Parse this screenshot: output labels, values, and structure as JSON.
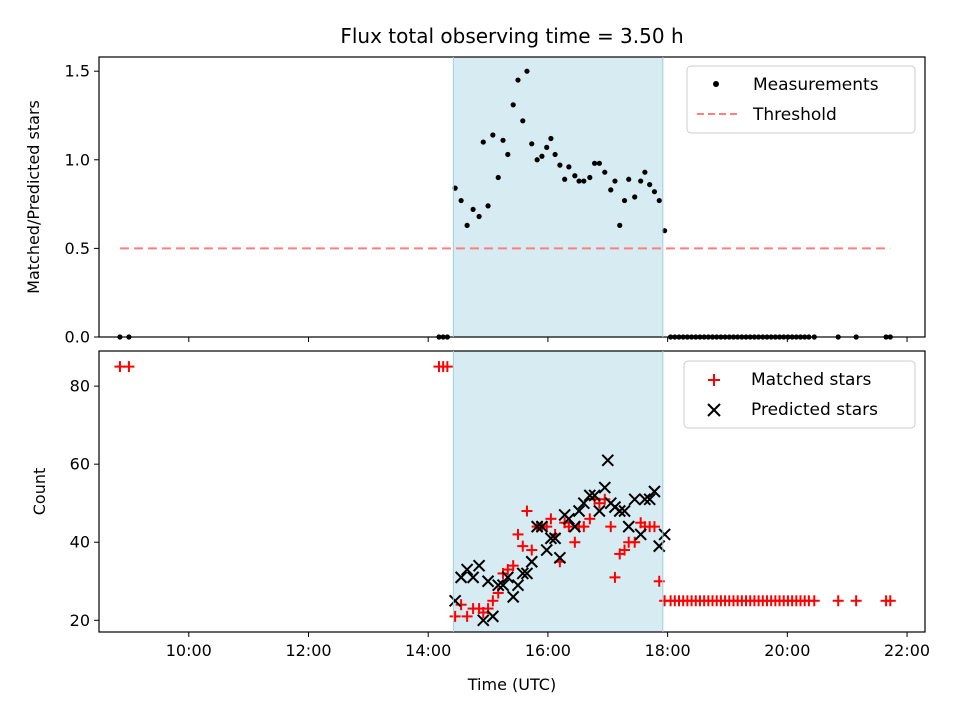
{
  "chart_data": [
    {
      "type": "scatter",
      "title": "Flux total observing time = 3.50 h",
      "xlabel": "",
      "ylabel": "Matched/Predicted stars",
      "xlim": [
        8.5,
        22.3
      ],
      "ylim": [
        0,
        1.58
      ],
      "x_ticks": [
        10,
        12,
        14,
        16,
        18,
        20,
        22
      ],
      "y_ticks": [
        0.0,
        0.5,
        1.0,
        1.5
      ],
      "y_tick_labels": [
        "0.0",
        "0.5",
        "1.0",
        "1.5"
      ],
      "shaded_region": {
        "x_start": 14.42,
        "x_end": 17.92,
        "color": "#add8e6"
      },
      "legend": {
        "placement": "top-right",
        "entries": [
          "Measurements",
          "Threshold"
        ]
      },
      "series": [
        {
          "name": "Measurements",
          "marker": "dot",
          "color": "#000000",
          "points": [
            [
              8.85,
              0
            ],
            [
              9.0,
              0
            ],
            [
              14.18,
              0
            ],
            [
              14.25,
              0
            ],
            [
              14.32,
              0
            ],
            [
              14.45,
              0.84
            ],
            [
              14.55,
              0.77
            ],
            [
              14.65,
              0.63
            ],
            [
              14.75,
              0.72
            ],
            [
              14.85,
              0.68
            ],
            [
              14.92,
              1.1
            ],
            [
              15.0,
              0.74
            ],
            [
              15.08,
              1.14
            ],
            [
              15.17,
              0.9
            ],
            [
              15.25,
              1.11
            ],
            [
              15.33,
              1.03
            ],
            [
              15.42,
              1.31
            ],
            [
              15.5,
              1.45
            ],
            [
              15.58,
              1.22
            ],
            [
              15.65,
              1.5
            ],
            [
              15.73,
              1.09
            ],
            [
              15.82,
              1.0
            ],
            [
              15.9,
              1.02
            ],
            [
              15.98,
              1.07
            ],
            [
              16.05,
              1.12
            ],
            [
              16.12,
              1.03
            ],
            [
              16.2,
              0.97
            ],
            [
              16.28,
              0.89
            ],
            [
              16.35,
              0.96
            ],
            [
              16.45,
              0.91
            ],
            [
              16.52,
              0.88
            ],
            [
              16.6,
              0.88
            ],
            [
              16.7,
              0.9
            ],
            [
              16.78,
              0.98
            ],
            [
              16.86,
              0.98
            ],
            [
              16.95,
              0.93
            ],
            [
              17.05,
              0.83
            ],
            [
              17.12,
              0.88
            ],
            [
              17.2,
              0.63
            ],
            [
              17.28,
              0.77
            ],
            [
              17.35,
              0.89
            ],
            [
              17.45,
              0.79
            ],
            [
              17.55,
              0.88
            ],
            [
              17.62,
              0.93
            ],
            [
              17.7,
              0.86
            ],
            [
              17.78,
              0.82
            ],
            [
              17.86,
              0.77
            ],
            [
              17.95,
              0.6
            ],
            [
              18.05,
              0
            ],
            [
              18.12,
              0
            ],
            [
              18.19,
              0
            ],
            [
              18.26,
              0
            ],
            [
              18.33,
              0
            ],
            [
              18.4,
              0
            ],
            [
              18.47,
              0
            ],
            [
              18.54,
              0
            ],
            [
              18.61,
              0
            ],
            [
              18.68,
              0
            ],
            [
              18.75,
              0
            ],
            [
              18.82,
              0
            ],
            [
              18.89,
              0
            ],
            [
              18.96,
              0
            ],
            [
              19.03,
              0
            ],
            [
              19.1,
              0
            ],
            [
              19.17,
              0
            ],
            [
              19.24,
              0
            ],
            [
              19.31,
              0
            ],
            [
              19.38,
              0
            ],
            [
              19.45,
              0
            ],
            [
              19.52,
              0
            ],
            [
              19.59,
              0
            ],
            [
              19.66,
              0
            ],
            [
              19.73,
              0
            ],
            [
              19.8,
              0
            ],
            [
              19.87,
              0
            ],
            [
              19.94,
              0
            ],
            [
              20.01,
              0
            ],
            [
              20.08,
              0
            ],
            [
              20.15,
              0
            ],
            [
              20.22,
              0
            ],
            [
              20.29,
              0
            ],
            [
              20.36,
              0
            ],
            [
              20.45,
              0
            ],
            [
              20.85,
              0
            ],
            [
              21.15,
              0
            ],
            [
              21.65,
              0
            ],
            [
              21.72,
              0
            ]
          ]
        },
        {
          "name": "Threshold",
          "style": "dashed",
          "color": "#ff7f7f",
          "points": [
            [
              8.85,
              0.5
            ],
            [
              21.72,
              0.5
            ]
          ]
        }
      ]
    },
    {
      "type": "scatter",
      "title": "",
      "xlabel": "Time (UTC)",
      "ylabel": "Count",
      "xlim": [
        8.5,
        22.3
      ],
      "ylim": [
        17,
        89
      ],
      "x_ticks": [
        10,
        12,
        14,
        16,
        18,
        20,
        22
      ],
      "x_tick_labels": [
        "10:00",
        "12:00",
        "14:00",
        "16:00",
        "18:00",
        "20:00",
        "22:00"
      ],
      "y_ticks": [
        20,
        40,
        60,
        80
      ],
      "y_tick_labels": [
        "20",
        "40",
        "60",
        "80"
      ],
      "shaded_region": {
        "x_start": 14.42,
        "x_end": 17.92,
        "color": "#add8e6"
      },
      "legend": {
        "placement": "top-right",
        "entries": [
          "Matched stars",
          "Predicted stars"
        ]
      },
      "series": [
        {
          "name": "Matched stars",
          "marker": "plus",
          "color": "#ff0000",
          "points": [
            [
              8.85,
              85
            ],
            [
              9.0,
              85
            ],
            [
              14.18,
              85
            ],
            [
              14.25,
              85
            ],
            [
              14.32,
              85
            ],
            [
              14.45,
              21
            ],
            [
              14.55,
              24
            ],
            [
              14.65,
              21
            ],
            [
              14.75,
              23
            ],
            [
              14.85,
              23
            ],
            [
              14.92,
              22
            ],
            [
              15.0,
              23
            ],
            [
              15.08,
              25
            ],
            [
              15.17,
              27
            ],
            [
              15.25,
              32
            ],
            [
              15.33,
              33
            ],
            [
              15.42,
              34
            ],
            [
              15.5,
              42
            ],
            [
              15.58,
              39
            ],
            [
              15.65,
              48
            ],
            [
              15.73,
              38
            ],
            [
              15.82,
              44
            ],
            [
              15.9,
              44
            ],
            [
              15.98,
              44
            ],
            [
              16.05,
              46
            ],
            [
              16.12,
              42
            ],
            [
              16.2,
              35
            ],
            [
              16.28,
              45
            ],
            [
              16.35,
              44
            ],
            [
              16.45,
              40
            ],
            [
              16.52,
              44
            ],
            [
              16.6,
              44
            ],
            [
              16.7,
              46
            ],
            [
              16.78,
              51
            ],
            [
              16.86,
              50
            ],
            [
              16.95,
              51
            ],
            [
              17.05,
              44
            ],
            [
              17.12,
              31
            ],
            [
              17.2,
              37
            ],
            [
              17.28,
              38
            ],
            [
              17.35,
              40
            ],
            [
              17.45,
              40
            ],
            [
              17.55,
              45
            ],
            [
              17.62,
              44
            ],
            [
              17.7,
              44
            ],
            [
              17.78,
              44
            ],
            [
              17.86,
              30
            ],
            [
              17.95,
              25
            ],
            [
              18.05,
              25
            ],
            [
              18.12,
              25
            ],
            [
              18.19,
              25
            ],
            [
              18.26,
              25
            ],
            [
              18.33,
              25
            ],
            [
              18.4,
              25
            ],
            [
              18.47,
              25
            ],
            [
              18.54,
              25
            ],
            [
              18.61,
              25
            ],
            [
              18.68,
              25
            ],
            [
              18.75,
              25
            ],
            [
              18.82,
              25
            ],
            [
              18.89,
              25
            ],
            [
              18.96,
              25
            ],
            [
              19.03,
              25
            ],
            [
              19.1,
              25
            ],
            [
              19.17,
              25
            ],
            [
              19.24,
              25
            ],
            [
              19.31,
              25
            ],
            [
              19.38,
              25
            ],
            [
              19.45,
              25
            ],
            [
              19.52,
              25
            ],
            [
              19.59,
              25
            ],
            [
              19.66,
              25
            ],
            [
              19.73,
              25
            ],
            [
              19.8,
              25
            ],
            [
              19.87,
              25
            ],
            [
              19.94,
              25
            ],
            [
              20.01,
              25
            ],
            [
              20.08,
              25
            ],
            [
              20.15,
              25
            ],
            [
              20.22,
              25
            ],
            [
              20.29,
              25
            ],
            [
              20.36,
              25
            ],
            [
              20.45,
              25
            ],
            [
              20.85,
              25
            ],
            [
              21.15,
              25
            ],
            [
              21.65,
              25
            ],
            [
              21.72,
              25
            ]
          ]
        },
        {
          "name": "Predicted stars",
          "marker": "x",
          "color": "#000000",
          "points": [
            [
              14.45,
              25
            ],
            [
              14.55,
              31
            ],
            [
              14.65,
              33
            ],
            [
              14.75,
              31
            ],
            [
              14.85,
              34
            ],
            [
              14.92,
              20
            ],
            [
              15.0,
              30
            ],
            [
              15.08,
              21
            ],
            [
              15.17,
              29
            ],
            [
              15.25,
              29
            ],
            [
              15.33,
              31
            ],
            [
              15.42,
              26
            ],
            [
              15.5,
              29
            ],
            [
              15.58,
              32
            ],
            [
              15.65,
              32
            ],
            [
              15.73,
              35
            ],
            [
              15.82,
              44
            ],
            [
              15.9,
              44
            ],
            [
              15.98,
              38
            ],
            [
              16.05,
              41
            ],
            [
              16.12,
              41
            ],
            [
              16.2,
              36
            ],
            [
              16.28,
              47
            ],
            [
              16.35,
              46
            ],
            [
              16.45,
              44
            ],
            [
              16.52,
              48
            ],
            [
              16.6,
              50
            ],
            [
              16.7,
              52
            ],
            [
              16.78,
              52
            ],
            [
              16.86,
              48
            ],
            [
              16.95,
              54
            ],
            [
              17.0,
              61
            ],
            [
              17.05,
              50
            ],
            [
              17.12,
              49
            ],
            [
              17.2,
              48
            ],
            [
              17.28,
              48
            ],
            [
              17.35,
              44
            ],
            [
              17.45,
              51
            ],
            [
              17.55,
              42
            ],
            [
              17.62,
              51
            ],
            [
              17.7,
              51
            ],
            [
              17.78,
              53
            ],
            [
              17.86,
              39
            ],
            [
              17.95,
              42
            ]
          ]
        }
      ]
    }
  ]
}
